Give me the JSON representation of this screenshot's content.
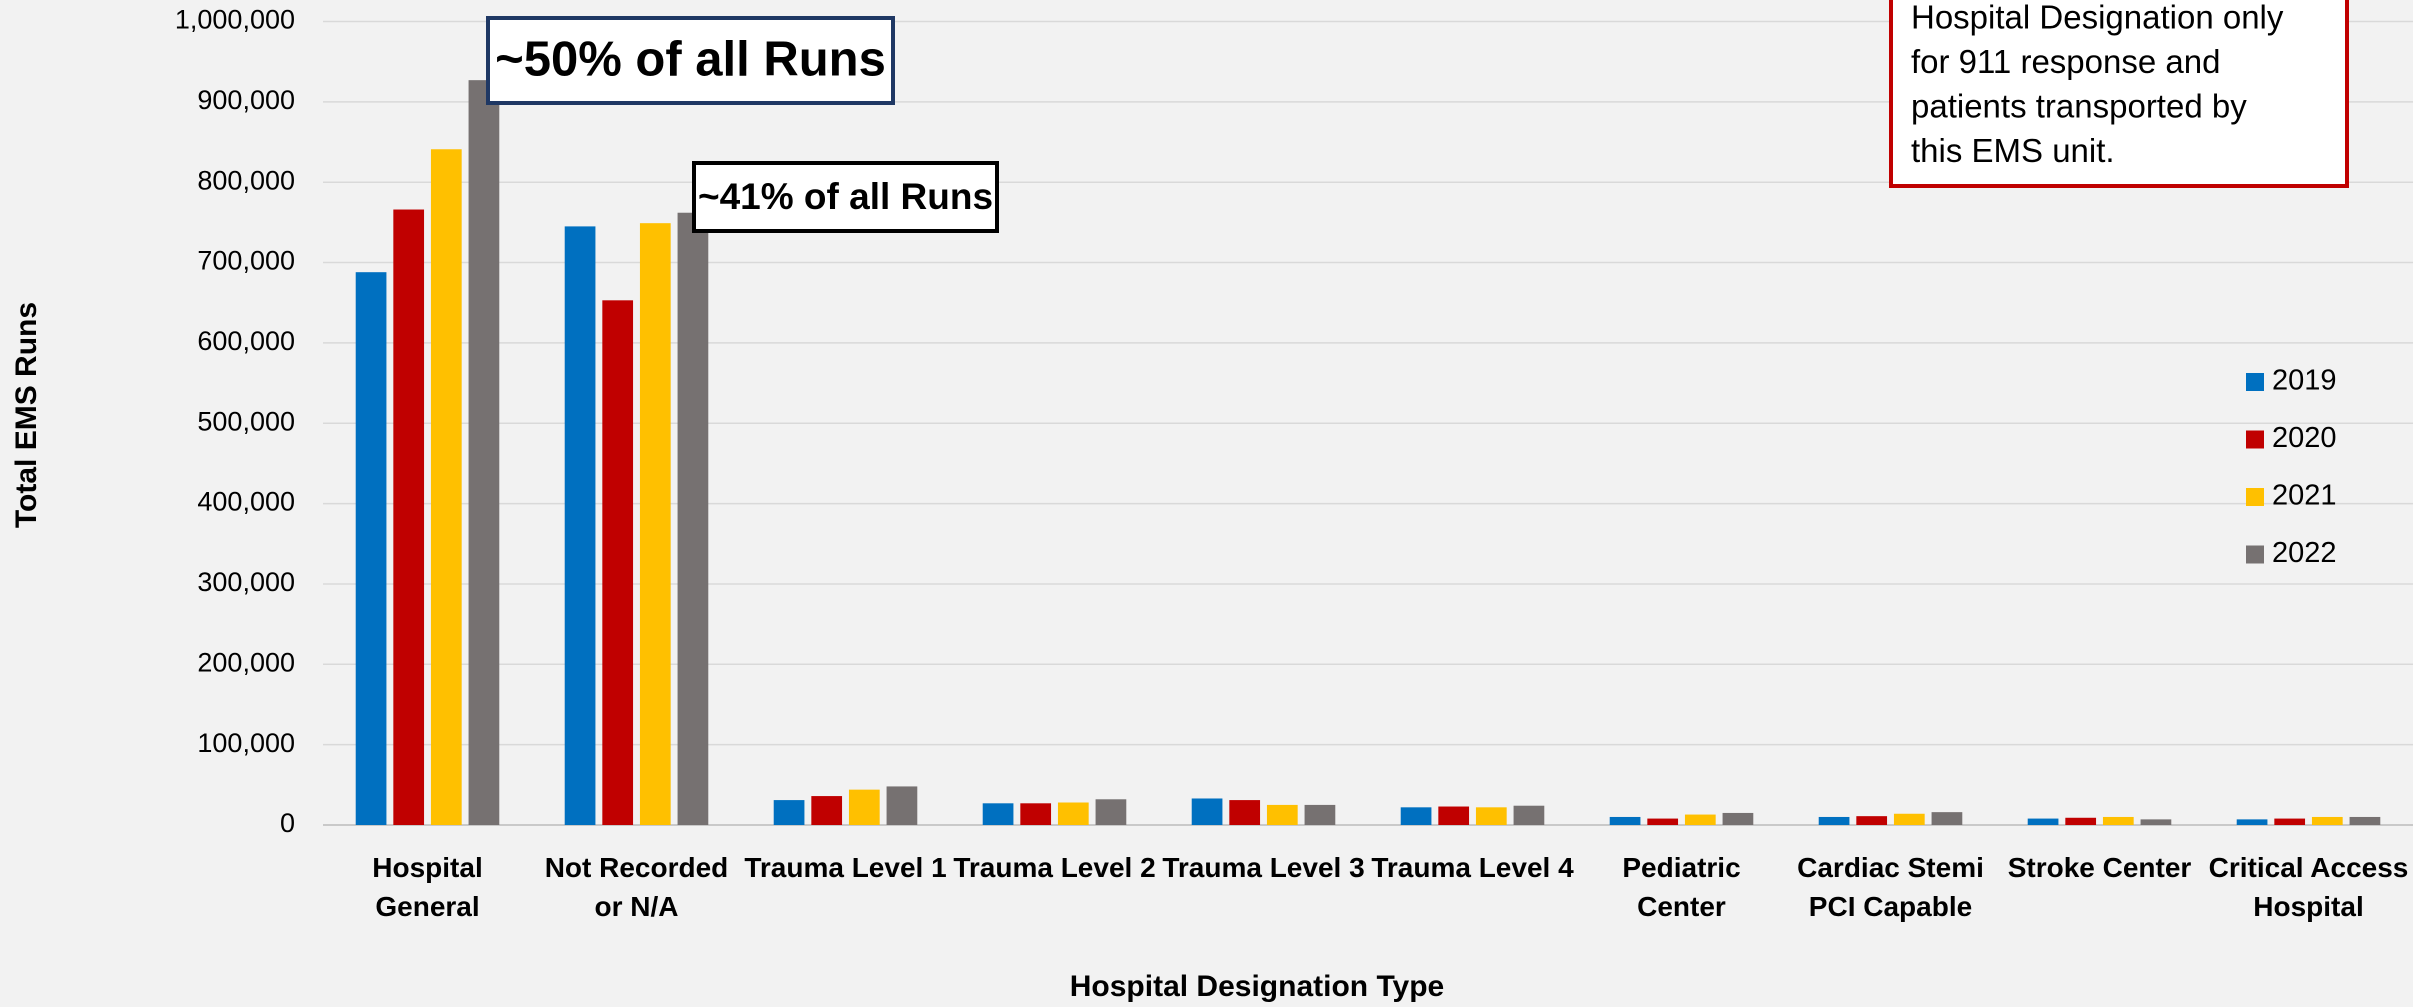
{
  "chart_data": {
    "type": "bar",
    "x_label": "Hospital Designation Type",
    "y_label": "Total EMS Runs",
    "categories": [
      "Hospital\nGeneral",
      "Not Recorded\nor N/A",
      "Trauma Level 1",
      "Trauma Level 2",
      "Trauma Level 3",
      "Trauma Level 4",
      "Pediatric\nCenter",
      "Cardiac Stemi\nPCI Capable",
      "Stroke Center",
      "Critical Access\nHospital"
    ],
    "series": [
      {
        "name": "2019",
        "color": "#0070c0",
        "values": [
          688000,
          745000,
          31000,
          27000,
          33000,
          22000,
          10000,
          10000,
          8000,
          7000
        ]
      },
      {
        "name": "2020",
        "color": "#c00000",
        "values": [
          766000,
          653000,
          36000,
          27000,
          31000,
          23000,
          8000,
          11000,
          9000,
          8000
        ]
      },
      {
        "name": "2021",
        "color": "#ffc000",
        "values": [
          841000,
          749000,
          44000,
          28000,
          25000,
          22000,
          13000,
          14000,
          10000,
          10000
        ]
      },
      {
        "name": "2022",
        "color": "#767171",
        "values": [
          927000,
          762000,
          48000,
          32000,
          25000,
          24000,
          15000,
          16000,
          7000,
          10000
        ]
      }
    ],
    "ylim": [
      0,
      1000000
    ],
    "yticks": [
      0,
      {
        "value": 100000,
        "label": "100,000"
      },
      {
        "value": 200000,
        "label": "200,000"
      },
      {
        "value": 300000,
        "label": "300,000"
      },
      {
        "value": 400000,
        "label": "400,000"
      },
      {
        "value": 500000,
        "label": "500,000"
      },
      {
        "value": 600000,
        "label": "600,000"
      },
      {
        "value": 700000,
        "label": "700,000"
      },
      {
        "value": 800000,
        "label": "800,000"
      },
      {
        "value": 900000,
        "label": "900,000"
      },
      {
        "value": 1000000,
        "label": "1,000,000"
      }
    ],
    "grid": true,
    "legend": "right",
    "annotations": [
      "~50% of all Runs",
      "~41% of all Runs"
    ],
    "note": [
      "Hospital Designation only",
      "for 911 response and",
      "patients transported by",
      "this EMS unit."
    ]
  }
}
